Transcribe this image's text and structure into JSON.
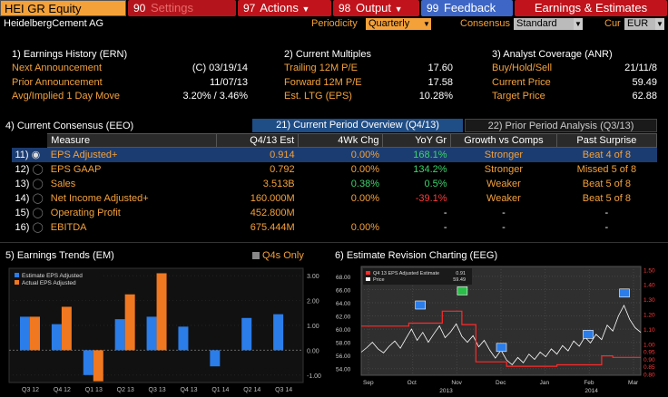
{
  "toolbar": {
    "ticker": "HEI GR Equity",
    "settings": {
      "num": "90",
      "label": "Settings"
    },
    "actions": {
      "num": "97",
      "label": "Actions"
    },
    "output": {
      "num": "98",
      "label": "Output"
    },
    "feedback": {
      "num": "99",
      "label": "Feedback"
    },
    "title": "Earnings & Estimates"
  },
  "header": {
    "company": "HeidelbergCement AG",
    "periodicity_label": "Periodicity",
    "periodicity_value": "Quarterly",
    "consensus_label": "Consensus",
    "consensus_value": "Standard",
    "cur_label": "Cur",
    "cur_value": "EUR"
  },
  "earnings_history": {
    "title": "1) Earnings History (ERN)",
    "rows": [
      {
        "label": "Next Announcement",
        "value": "(C)  03/19/14"
      },
      {
        "label": "Prior Announcement",
        "value": "11/07/13"
      },
      {
        "label": "Avg/Implied 1 Day Move",
        "value": "3.20% / 3.46%"
      }
    ]
  },
  "current_multiples": {
    "title": "2) Current Multiples",
    "rows": [
      {
        "label": "Trailing 12M P/E",
        "value": "17.60"
      },
      {
        "label": "Forward 12M P/E",
        "value": "17.58"
      },
      {
        "label": "Est. LTG (EPS)",
        "value": "10.28%"
      }
    ]
  },
  "analyst_coverage": {
    "title": "3) Analyst Coverage (ANR)",
    "rows": [
      {
        "label": "Buy/Hold/Sell",
        "value": "21/11/8"
      },
      {
        "label": "Current Price",
        "value": "59.49"
      },
      {
        "label": "Target Price",
        "value": "62.88"
      }
    ]
  },
  "consensus": {
    "title": "4) Current Consensus (EEO)",
    "tab_current": "21) Current Period Overview (Q4/13)",
    "tab_prior": "22) Prior Period Analysis (Q3/13)",
    "headers": [
      "Measure",
      "Q4/13 Est",
      "4Wk Chg",
      "YoY Gr",
      "Growth vs Comps",
      "Past Surprise"
    ],
    "rows": [
      {
        "num": "11)",
        "measure": "EPS Adjusted+",
        "est": "0.914",
        "chg": "0.00%",
        "yoy": "168.1%",
        "comps": "Stronger",
        "surprise": "Beat 4 of 8"
      },
      {
        "num": "12)",
        "measure": "EPS GAAP",
        "est": "0.792",
        "chg": "0.00%",
        "yoy": "134.2%",
        "comps": "Stronger",
        "surprise": "Missed 5 of 8"
      },
      {
        "num": "13)",
        "measure": "Sales",
        "est": "3.513B",
        "chg": "0.38%",
        "yoy": "0.5%",
        "comps": "Weaker",
        "surprise": "Beat 5 of 8"
      },
      {
        "num": "14)",
        "measure": "Net Income Adjusted+",
        "est": "160.000M",
        "chg": "0.00%",
        "yoy": "-39.1%",
        "comps": "Weaker",
        "surprise": "Beat 5 of 8"
      },
      {
        "num": "15)",
        "measure": "Operating Profit",
        "est": "452.800M",
        "chg": "",
        "yoy": "-",
        "comps": "-",
        "surprise": "-"
      },
      {
        "num": "16)",
        "measure": "EBITDA",
        "est": "675.444M",
        "chg": "0.00%",
        "yoy": "-",
        "comps": "-",
        "surprise": "-"
      }
    ]
  },
  "trends": {
    "title": "5) Earnings Trends (EM)",
    "q4s_label": "Q4s Only"
  },
  "revision": {
    "title": "6) Estimate Revision Charting (EEG)"
  },
  "chart_data": [
    {
      "type": "bar",
      "categories": [
        "Q3 '12",
        "Q4 '12",
        "Q1 '13",
        "Q2 '13",
        "Q3 '13",
        "Q4 '13",
        "Q1 '14",
        "Q2 '14",
        "Q3 '14"
      ],
      "tick_labels": [
        "Q3 12",
        "Q4 12",
        "Q1 13",
        "Q2 13",
        "Q3 13",
        "Q4 13",
        "Q1 14",
        "Q2 14",
        "Q3 14"
      ],
      "series": [
        {
          "name": "Estimate EPS Adjusted",
          "color": "#2b7de9",
          "values": [
            1.35,
            1.05,
            -1.0,
            1.25,
            1.35,
            0.95,
            -0.65,
            1.3,
            1.45
          ]
        },
        {
          "name": "Actual EPS Adjusted",
          "color": "#f07820",
          "values": [
            1.35,
            1.75,
            -1.25,
            2.25,
            3.1,
            null,
            null,
            null,
            null
          ]
        }
      ],
      "yticks": [
        "3.00",
        "2.00",
        "1.00",
        "0.00",
        "-1.00"
      ],
      "ylim": [
        -1.3,
        3.3
      ]
    },
    {
      "type": "line",
      "series": [
        {
          "name": "Q4 13 EPS Adjusted Estimate",
          "value_label": "0.91",
          "color": "#ff2a2a",
          "axis": "right"
        },
        {
          "name": "Price",
          "value_label": "59.49",
          "color": "#ffffff",
          "axis": "left"
        }
      ],
      "x_ticks": [
        "Sep",
        "Oct",
        "Nov",
        "Dec",
        "Jan",
        "Feb",
        "Mar"
      ],
      "year_labels": [
        "2013",
        "2014"
      ],
      "left_ticks": [
        "68.00",
        "66.00",
        "64.00",
        "62.00",
        "60.00",
        "58.00",
        "56.00",
        "54.00"
      ],
      "right_ticks": [
        "1.50",
        "1.40",
        "1.30",
        "1.20",
        "1.10",
        "1.00",
        "0.95",
        "0.90",
        "0.85",
        "0.80"
      ],
      "left_ylim": [
        53.0,
        69.5
      ],
      "right_ylim": [
        0.79,
        1.52
      ],
      "estimate_steps": [
        {
          "x": 0.0,
          "y": 1.12
        },
        {
          "x": 0.17,
          "y": 1.12
        },
        {
          "x": 0.17,
          "y": 1.14
        },
        {
          "x": 0.29,
          "y": 1.14
        },
        {
          "x": 0.29,
          "y": 1.22
        },
        {
          "x": 0.36,
          "y": 1.22
        },
        {
          "x": 0.36,
          "y": 1.13
        },
        {
          "x": 0.41,
          "y": 1.13
        },
        {
          "x": 0.41,
          "y": 0.88
        },
        {
          "x": 0.52,
          "y": 0.88
        },
        {
          "x": 0.52,
          "y": 0.85
        },
        {
          "x": 0.7,
          "y": 0.85
        },
        {
          "x": 0.7,
          "y": 0.86
        },
        {
          "x": 0.86,
          "y": 0.86
        },
        {
          "x": 0.86,
          "y": 0.92
        },
        {
          "x": 0.9,
          "y": 0.92
        },
        {
          "x": 0.9,
          "y": 0.91
        },
        {
          "x": 1.0,
          "y": 0.91
        }
      ],
      "price": [
        [
          0.0,
          56.5
        ],
        [
          0.02,
          57.2
        ],
        [
          0.04,
          58.0
        ],
        [
          0.06,
          57.0
        ],
        [
          0.08,
          56.4
        ],
        [
          0.1,
          57.4
        ],
        [
          0.12,
          58.2
        ],
        [
          0.14,
          57.1
        ],
        [
          0.16,
          58.6
        ],
        [
          0.18,
          60.0
        ],
        [
          0.2,
          58.3
        ],
        [
          0.22,
          59.5
        ],
        [
          0.24,
          58.0
        ],
        [
          0.26,
          59.3
        ],
        [
          0.28,
          60.5
        ],
        [
          0.3,
          58.7
        ],
        [
          0.32,
          59.6
        ],
        [
          0.34,
          60.8
        ],
        [
          0.36,
          58.9
        ],
        [
          0.38,
          58.0
        ],
        [
          0.4,
          59.0
        ],
        [
          0.42,
          57.3
        ],
        [
          0.44,
          58.3
        ],
        [
          0.46,
          56.8
        ],
        [
          0.48,
          55.6
        ],
        [
          0.5,
          56.8
        ],
        [
          0.52,
          55.3
        ],
        [
          0.54,
          54.6
        ],
        [
          0.56,
          55.7
        ],
        [
          0.58,
          54.9
        ],
        [
          0.6,
          56.2
        ],
        [
          0.62,
          55.4
        ],
        [
          0.64,
          56.5
        ],
        [
          0.66,
          55.8
        ],
        [
          0.68,
          57.0
        ],
        [
          0.7,
          56.2
        ],
        [
          0.72,
          57.5
        ],
        [
          0.74,
          56.7
        ],
        [
          0.76,
          58.2
        ],
        [
          0.78,
          57.4
        ],
        [
          0.8,
          58.8
        ],
        [
          0.82,
          57.9
        ],
        [
          0.84,
          59.2
        ],
        [
          0.86,
          58.4
        ],
        [
          0.88,
          60.6
        ],
        [
          0.9,
          59.7
        ],
        [
          0.92,
          62.0
        ],
        [
          0.94,
          63.6
        ],
        [
          0.96,
          61.5
        ],
        [
          0.98,
          60.2
        ],
        [
          1.0,
          59.5
        ]
      ],
      "markers": [
        0.21,
        0.36,
        0.5,
        0.81,
        0.94
      ]
    }
  ]
}
